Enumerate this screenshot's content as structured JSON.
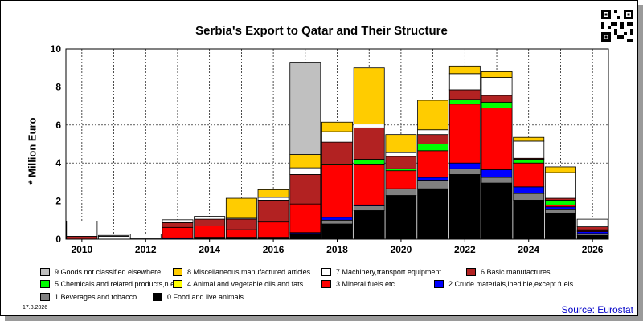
{
  "title": "Serbia's Export to Qatar and Their Structure",
  "ylabel": "* Million Euro",
  "date": "17.8.2026",
  "source": "Source: Eurostat",
  "colors": {
    "c0": "#000000",
    "c1": "#808080",
    "c2": "#0000ff",
    "c3": "#ff0000",
    "c4": "#ffff00",
    "c5": "#00ff00",
    "c6": "#b22222",
    "c7": "#ffffff",
    "c8": "#ffcc00",
    "c9": "#c0c0c0"
  },
  "legend": [
    {
      "label": "9 Goods not classified elsewhere",
      "color": "#c0c0c0"
    },
    {
      "label": "8 Miscellaneous manufactured articles",
      "color": "#ffcc00"
    },
    {
      "label": "7 Machinery,transport equipment",
      "color": "#ffffff"
    },
    {
      "label": "6 Basic manufactures",
      "color": "#b22222"
    },
    {
      "label": "5 Chemicals and related products,n.e.s.",
      "color": "#00ff00"
    },
    {
      "label": "4 Animal and vegetable oils and fats",
      "color": "#ffff00"
    },
    {
      "label": "3 Mineral fuels etc",
      "color": "#ff0000"
    },
    {
      "label": "2 Crude materials,inedible,except fuels",
      "color": "#0000ff"
    },
    {
      "label": "1 Beverages and tobacco",
      "color": "#808080"
    },
    {
      "label": "0 Food and live animals",
      "color": "#000000"
    }
  ],
  "chart_data": {
    "type": "bar",
    "stacked": true,
    "x": [
      "2010",
      "2011",
      "2012",
      "2013",
      "2014",
      "2015",
      "2016",
      "2017",
      "2018",
      "2019",
      "2020",
      "2021",
      "2022",
      "2023",
      "2024",
      "2025",
      "2026"
    ],
    "x_tick_labels": [
      "2010",
      "2012",
      "2014",
      "2016",
      "2018",
      "2020",
      "2022",
      "2024",
      "2026"
    ],
    "ylim": [
      0,
      10
    ],
    "yticks": [
      0,
      2,
      4,
      6,
      8,
      10
    ],
    "grid": true,
    "series": [
      {
        "name": "0 Food and live animals",
        "color": "#000000",
        "values": [
          0,
          0,
          0,
          0.02,
          0.05,
          0.05,
          0.05,
          0.25,
          0.8,
          1.5,
          2.3,
          2.65,
          3.4,
          2.95,
          2.05,
          1.35,
          0.2
        ]
      },
      {
        "name": "1 Beverages and tobacco",
        "color": "#808080",
        "values": [
          0,
          0,
          0,
          0,
          0,
          0,
          0,
          0.05,
          0.2,
          0.25,
          0.35,
          0.45,
          0.3,
          0.3,
          0.35,
          0.2,
          0.1
        ]
      },
      {
        "name": "2 Crude materials,inedible,except fuels",
        "color": "#0000ff",
        "values": [
          0,
          0,
          0,
          0.05,
          0.05,
          0.05,
          0.05,
          0.05,
          0.15,
          0.05,
          0,
          0.15,
          0.3,
          0.4,
          0.35,
          0.15,
          0.1
        ]
      },
      {
        "name": "3 Mineral fuels etc",
        "color": "#ff0000",
        "values": [
          0,
          0,
          0.02,
          0.55,
          0.6,
          0.4,
          0.8,
          1.5,
          2.75,
          2.15,
          0.95,
          1.4,
          3.1,
          3.25,
          1.25,
          0.1,
          0.05
        ]
      },
      {
        "name": "4 Animal and vegetable oils and fats",
        "color": "#ffff00",
        "values": [
          0,
          0,
          0,
          0,
          0,
          0,
          0,
          0,
          0,
          0,
          0,
          0,
          0,
          0,
          0,
          0,
          0
        ]
      },
      {
        "name": "5 Chemicals and related products,n.e.s.",
        "color": "#00ff00",
        "values": [
          0,
          0,
          0,
          0,
          0,
          0,
          0,
          0,
          0.05,
          0.25,
          0.1,
          0.35,
          0.25,
          0.3,
          0.2,
          0.25,
          0.05
        ]
      },
      {
        "name": "6 Basic manufactures",
        "color": "#b22222",
        "values": [
          0.15,
          0,
          0,
          0.25,
          0.35,
          0.55,
          1.15,
          1.55,
          1.15,
          1.65,
          0.65,
          0.5,
          0.5,
          0.35,
          0.05,
          0.1,
          0.15
        ]
      },
      {
        "name": "7 Machinery,transport equipment",
        "color": "#ffffff",
        "values": [
          0.8,
          0.15,
          0.25,
          0.15,
          0.15,
          0.05,
          0.15,
          0.35,
          0.55,
          0.2,
          0.2,
          0.25,
          0.85,
          0.95,
          0.9,
          1.35,
          0.4
        ]
      },
      {
        "name": "8 Miscellaneous manufactured articles",
        "color": "#ffcc00",
        "values": [
          0,
          0,
          0,
          0,
          0,
          1.05,
          0.4,
          0.7,
          0.5,
          2.95,
          0.95,
          1.55,
          0.4,
          0.3,
          0.2,
          0.3,
          0
        ]
      },
      {
        "name": "9 Goods not classified elsewhere",
        "color": "#c0c0c0",
        "values": [
          0,
          0.05,
          0,
          0,
          0,
          0,
          0,
          4.85,
          0,
          0,
          0,
          0,
          0,
          0,
          0,
          0,
          0
        ]
      }
    ]
  }
}
